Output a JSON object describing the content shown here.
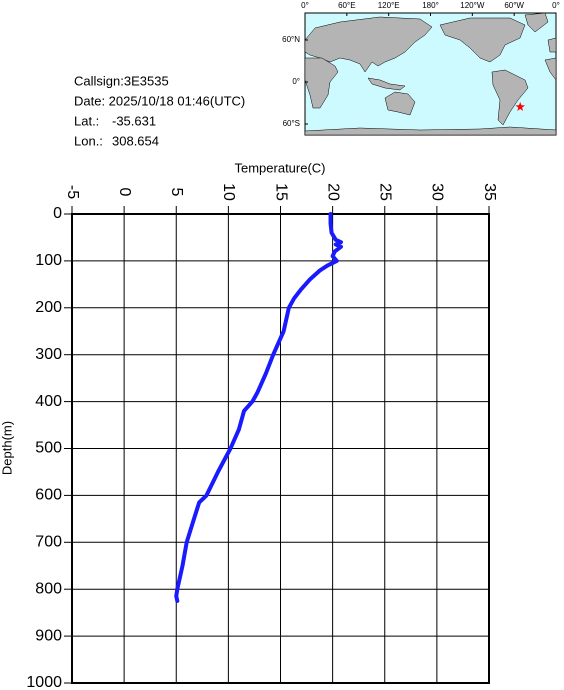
{
  "info": {
    "callsign": "Callsign:3E3535",
    "date": "Date:  2025/10/18 01:46(UTC)",
    "lat_label": "Lat.:",
    "lat": -35.631,
    "lon_label": "Lon.:",
    "lon": 308.654
  },
  "map": {
    "lon_lim": [
      0,
      360
    ],
    "lon_ticks": [
      {
        "value": 0,
        "label": "0°"
      },
      {
        "value": 60,
        "label": "60°E"
      },
      {
        "value": 120,
        "label": "120°E"
      },
      {
        "value": 180,
        "label": "180°"
      },
      {
        "value": 240,
        "label": "120°W"
      },
      {
        "value": 300,
        "label": "60°W"
      },
      {
        "value": 360,
        "label": "0°"
      }
    ],
    "lat_ticks": [
      {
        "value": 60,
        "label": "60°N"
      },
      {
        "value": 0,
        "label": "0°"
      },
      {
        "value": -60,
        "label": "60°S"
      }
    ],
    "marker_color": "#ff0000"
  },
  "chart_data": {
    "type": "line",
    "x_label": "Temperature(C)",
    "y_label": "Depth(m)",
    "xlim": [
      -5,
      35
    ],
    "ylim": [
      0,
      1000
    ],
    "y_inverted": true,
    "xticks": [
      -5,
      0,
      5,
      10,
      15,
      20,
      25,
      30,
      35
    ],
    "yticks": [
      0,
      100,
      200,
      300,
      400,
      500,
      600,
      700,
      800,
      900,
      1000
    ],
    "grid": true,
    "color": "#1a1aff",
    "x": [
      19.8,
      19.8,
      19.9,
      20.3,
      20.8,
      20.3,
      20.8,
      20.2,
      20.0,
      20.4,
      19.5,
      18.8,
      17.8,
      17.0,
      16.3,
      15.8,
      15.6,
      15.3,
      14.7,
      14.3,
      13.6,
      12.8,
      12.3,
      11.5,
      11.0,
      10.2,
      9.0,
      7.9,
      7.2,
      6.7,
      6.0,
      5.6,
      5.1,
      5.0,
      5.1
    ],
    "y": [
      0,
      20,
      40,
      55,
      60,
      65,
      70,
      80,
      90,
      100,
      110,
      120,
      140,
      160,
      180,
      200,
      220,
      250,
      280,
      300,
      340,
      380,
      400,
      420,
      460,
      500,
      550,
      600,
      615,
      650,
      700,
      750,
      800,
      815,
      825
    ]
  }
}
